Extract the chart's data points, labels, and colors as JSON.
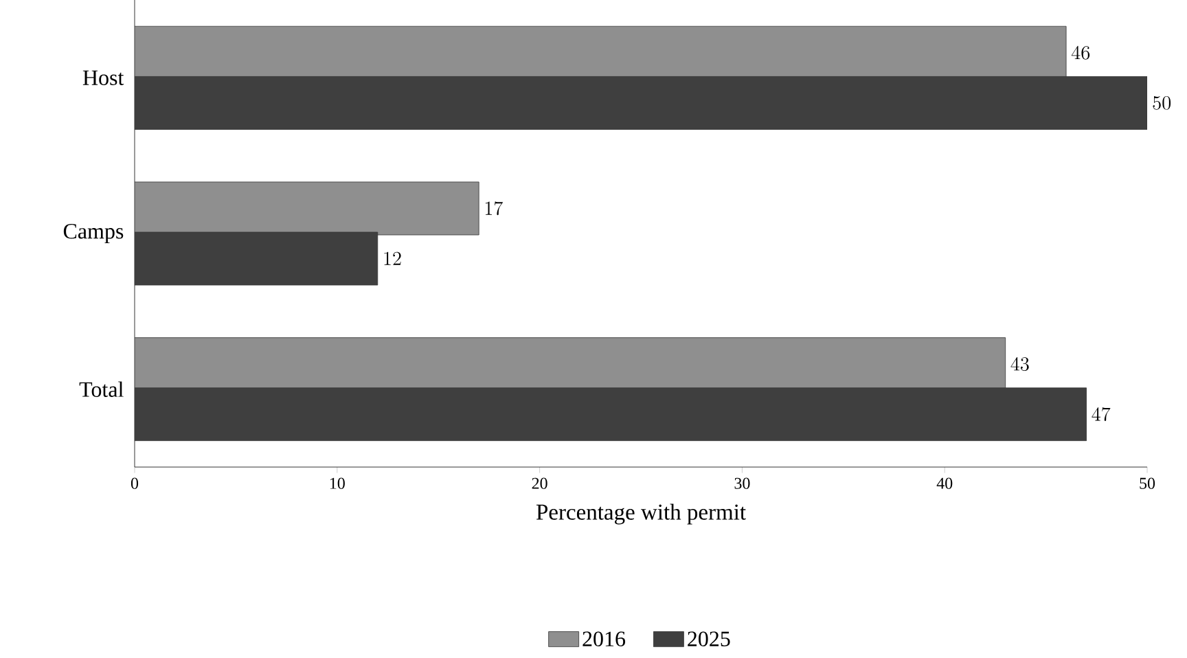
{
  "chart_data": {
    "type": "bar",
    "orientation": "horizontal",
    "xlabel": "Percentage with permit",
    "categories": [
      "Host",
      "Camps",
      "Total"
    ],
    "series": [
      {
        "name": "2016",
        "color": "#8f8f8f",
        "values": [
          46,
          17,
          43
        ]
      },
      {
        "name": "2025",
        "color": "#3f3f3f",
        "values": [
          50,
          12,
          47
        ]
      }
    ],
    "xlim": [
      0,
      50
    ],
    "xticks": [
      0,
      10,
      20,
      30,
      40,
      50
    ],
    "data_labels": true,
    "legend": "bottom",
    "grid": false
  }
}
